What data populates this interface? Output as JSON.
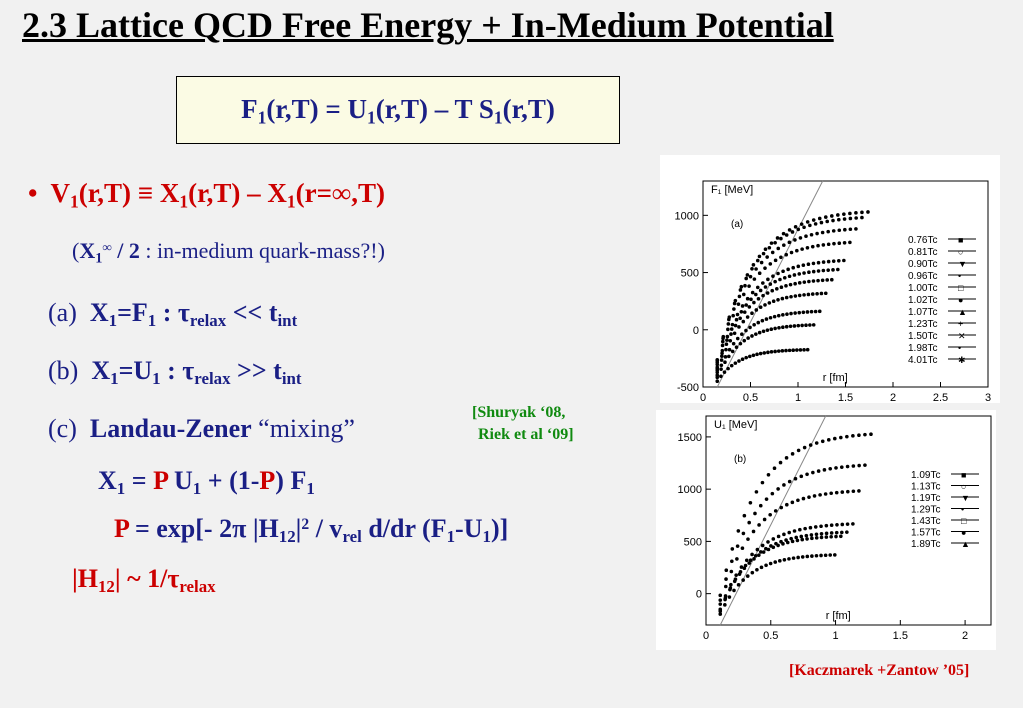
{
  "slide": {
    "title": "2.3 Lattice QCD Free Energy + In-Medium Potential",
    "equation": {
      "F": "F",
      "F_sub": "1",
      "args1": "(r,T) = U",
      "U_sub": "1",
      "args2": "(r,T) – T S",
      "S_sub": "1",
      "args3": "(r,T)"
    },
    "bullet": {
      "marker": "•",
      "V": "V",
      "V_sub": "1",
      "p1": "(r,T) ≡ X",
      "X1_sub": "1",
      "p2": "(r,T) – X",
      "X2_sub": "1",
      "p3": "(r=∞,T)"
    },
    "note": {
      "open": "(",
      "X": "X",
      "X_sub": "1",
      "X_sup": "∞",
      "div": " / 2",
      "rest": " : in-medium quark-mass?!)"
    },
    "items": [
      {
        "label": "(a) ",
        "X": "X",
        "X_sub": "1",
        "eq": "=F",
        "F_sub": "1",
        "colon": " :  ",
        "tau": "τ",
        "tau_sub": "relax",
        "rel": " << t",
        "t_sub": "int"
      },
      {
        "label": "(b) ",
        "X": "X",
        "X_sub": "1",
        "eq": "=U",
        "F_sub": "1",
        "colon": " :  ",
        "tau": "τ",
        "tau_sub": "relax",
        "rel": " >> t",
        "t_sub": "int"
      }
    ],
    "item_c": {
      "label": "(c) ",
      "bold": "Landau-Zener",
      "rest": " “mixing”"
    },
    "cite1_line1": "[Shuryak ‘08,",
    "cite1_line2": "Riek et al ‘09]",
    "eq_x1": {
      "X": "X",
      "X_sub": "1",
      "eq": " = ",
      "P1": "P",
      "U": " U",
      "U_sub": "1",
      "plus": " + (1-",
      "P2": "P",
      "F": ") F",
      "F_sub": "1"
    },
    "eq_p": {
      "P": "P",
      "a": " = exp[- 2π |H",
      "H_sub": "12",
      "b": "|",
      "sq": "2",
      "c": " / v",
      "v_sub": "rel",
      "d": " d/dr (F",
      "F_sub": "1",
      "e": "-U",
      "U_sub": "1",
      "f": ")]"
    },
    "eq_h": {
      "a": "|H",
      "H_sub": "12",
      "b": "| ~ 1/τ",
      "t_sub": "relax"
    },
    "cite2": "[Kaczmarek +Zantow ’05]"
  },
  "chart_data": [
    {
      "type": "scatter",
      "panel_label": "(a)",
      "ylabel": "F₁ [MeV]",
      "xlabel": "r [fm]",
      "xlim": [
        0,
        3
      ],
      "ylim": [
        -500,
        1300
      ],
      "xticks": [
        "0",
        "0.5",
        "1",
        "1.5",
        "2",
        "2.5",
        "3"
      ],
      "yticks": [
        "-500",
        "0",
        "500",
        "1000"
      ],
      "series": [
        {
          "name": "0.76T",
          "plateau": 1050
        },
        {
          "name": "0.81T",
          "plateau": 1000
        },
        {
          "name": "0.90T",
          "plateau": 900
        },
        {
          "name": "0.96T",
          "plateau": 780
        },
        {
          "name": "1.00T",
          "plateau": 620
        },
        {
          "name": "1.02T",
          "plateau": 540
        },
        {
          "name": "1.07T",
          "plateau": 450
        },
        {
          "name": "1.23T",
          "plateau": 330
        },
        {
          "name": "1.50T",
          "plateau": 170
        },
        {
          "name": "1.98T",
          "plateau": 50
        },
        {
          "name": "4.01T",
          "plateau": -170
        }
      ],
      "series_subscript": "c"
    },
    {
      "type": "scatter",
      "panel_label": "(b)",
      "ylabel": "U₁ [MeV]",
      "xlabel": "r [fm]",
      "xlim": [
        0,
        2.2
      ],
      "ylim": [
        -300,
        1700
      ],
      "xticks": [
        "0",
        "0.5",
        "1",
        "1.5",
        "2"
      ],
      "yticks": [
        "0",
        "500",
        "1000",
        "1500"
      ],
      "series": [
        {
          "name": "1.09T",
          "plateau": 1550
        },
        {
          "name": "1.13T",
          "plateau": 1250
        },
        {
          "name": "1.19T",
          "plateau": 1000
        },
        {
          "name": "1.29T",
          "plateau": 680
        },
        {
          "name": "1.43T",
          "plateau": 600
        },
        {
          "name": "1.57T",
          "plateau": 560
        },
        {
          "name": "1.89T",
          "plateau": 380
        }
      ],
      "series_subscript": "c"
    }
  ]
}
